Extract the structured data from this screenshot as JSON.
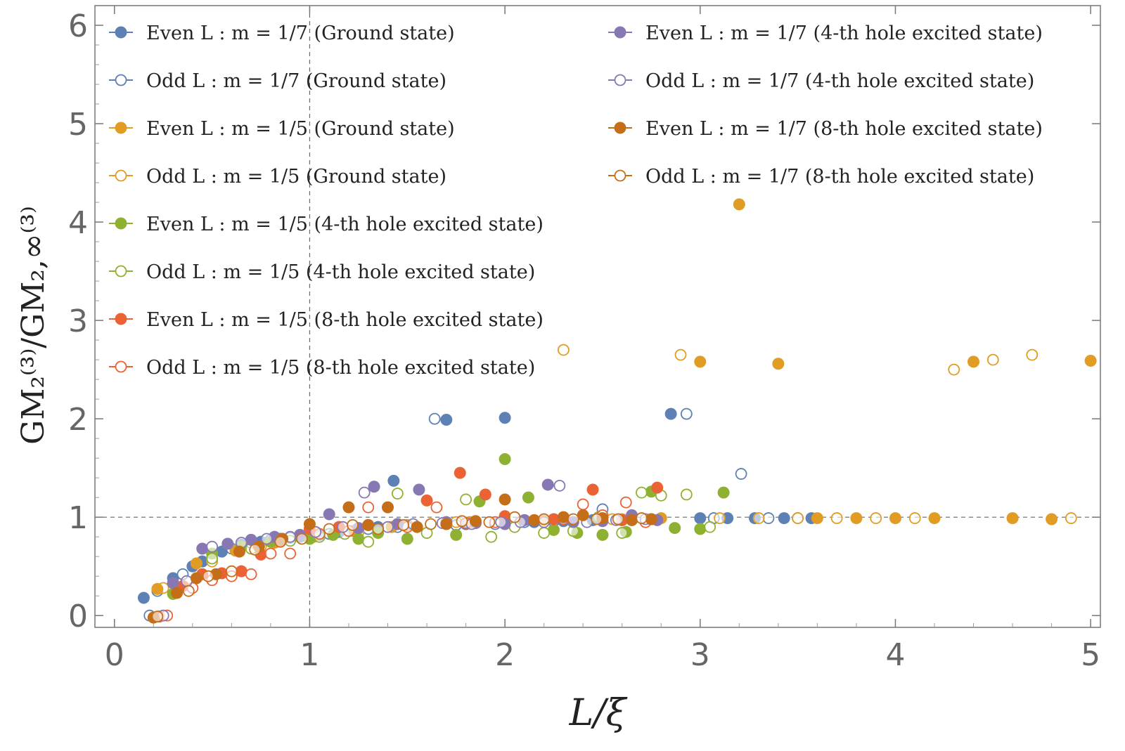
{
  "chart_data": {
    "type": "scatter",
    "xlabel": "L/ξ",
    "ylabel": "GM₂⁽³⁾/GM₂,∞⁽³⁾",
    "xlim": [
      -0.1,
      5.05
    ],
    "ylim": [
      -0.12,
      6.2
    ],
    "xticks": [
      "0",
      "1",
      "2",
      "3",
      "4",
      "5"
    ],
    "yticks": [
      "0",
      "1",
      "2",
      "3",
      "4",
      "5",
      "6"
    ],
    "reference_lines": {
      "x": 1,
      "y": 1
    },
    "legend_position": "top",
    "series": [
      {
        "name": "Even L :  m = 1/7  (Ground state)",
        "color": "#5E81B5",
        "filled": true,
        "points": [
          [
            0.15,
            0.18
          ],
          [
            0.3,
            0.38
          ],
          [
            0.4,
            0.5
          ],
          [
            0.45,
            0.55
          ],
          [
            0.55,
            0.65
          ],
          [
            0.65,
            0.72
          ],
          [
            0.75,
            0.75
          ],
          [
            0.85,
            0.78
          ],
          [
            0.95,
            0.8
          ],
          [
            1.05,
            0.82
          ],
          [
            1.15,
            0.85
          ],
          [
            1.25,
            0.88
          ],
          [
            1.35,
            0.9
          ],
          [
            1.43,
            1.37
          ],
          [
            1.5,
            0.92
          ],
          [
            1.7,
            1.99
          ],
          [
            1.8,
            0.93
          ],
          [
            2.0,
            2.01
          ],
          [
            2.15,
            0.95
          ],
          [
            2.3,
            0.96
          ],
          [
            2.45,
            0.97
          ],
          [
            2.6,
            0.97
          ],
          [
            2.75,
            0.98
          ],
          [
            2.85,
            2.05
          ],
          [
            3.0,
            0.99
          ],
          [
            3.14,
            0.99
          ],
          [
            3.28,
            0.99
          ],
          [
            3.43,
            0.99
          ],
          [
            3.57,
            0.99
          ]
        ]
      },
      {
        "name": "Odd L :  m = 1/7  (Ground state)",
        "color": "#5E81B5",
        "filled": false,
        "points": [
          [
            0.18,
            0.0
          ],
          [
            0.22,
            0.25
          ],
          [
            0.35,
            0.42
          ],
          [
            0.5,
            0.58
          ],
          [
            0.6,
            0.68
          ],
          [
            0.7,
            0.74
          ],
          [
            0.8,
            0.77
          ],
          [
            0.9,
            0.79
          ],
          [
            1.0,
            0.8
          ],
          [
            1.1,
            0.83
          ],
          [
            1.2,
            0.86
          ],
          [
            1.3,
            0.88
          ],
          [
            1.45,
            0.9
          ],
          [
            1.64,
            2.0
          ],
          [
            1.75,
            0.92
          ],
          [
            1.95,
            0.93
          ],
          [
            2.1,
            0.95
          ],
          [
            2.25,
            0.96
          ],
          [
            2.5,
            1.08
          ],
          [
            2.65,
            0.97
          ],
          [
            2.93,
            2.05
          ],
          [
            3.07,
            0.99
          ],
          [
            3.21,
            1.44
          ],
          [
            3.35,
            0.99
          ],
          [
            3.5,
            0.99
          ]
        ]
      },
      {
        "name": "Odd L :  m = 1/5  (Ground state)",
        "color": "#E19C24",
        "filled": false,
        "points": [
          [
            0.25,
            0.28
          ],
          [
            0.5,
            0.55
          ],
          [
            0.75,
            0.7
          ],
          [
            1.0,
            0.78
          ],
          [
            1.25,
            0.85
          ],
          [
            1.5,
            0.92
          ],
          [
            1.75,
            0.95
          ],
          [
            2.0,
            0.96
          ],
          [
            2.3,
            2.7
          ],
          [
            2.55,
            0.98
          ],
          [
            2.9,
            2.65
          ],
          [
            3.1,
            0.99
          ],
          [
            3.3,
            0.99
          ],
          [
            3.5,
            0.99
          ],
          [
            3.7,
            0.99
          ],
          [
            3.9,
            0.99
          ],
          [
            4.1,
            0.99
          ],
          [
            4.3,
            2.5
          ],
          [
            4.5,
            2.6
          ],
          [
            4.7,
            2.65
          ],
          [
            4.9,
            0.99
          ]
        ]
      },
      {
        "name": "Even L :  m = 1/5  (Ground state)",
        "color": "#E19C24",
        "filled": true,
        "points": [
          [
            0.22,
            0.27
          ],
          [
            0.42,
            0.53
          ],
          [
            0.62,
            0.66
          ],
          [
            0.82,
            0.74
          ],
          [
            1.02,
            0.8
          ],
          [
            1.22,
            0.86
          ],
          [
            1.42,
            0.9
          ],
          [
            1.82,
            0.95
          ],
          [
            2.2,
            0.97
          ],
          [
            2.6,
            0.98
          ],
          [
            2.8,
            0.99
          ],
          [
            3.0,
            2.58
          ],
          [
            3.2,
            4.18
          ],
          [
            3.4,
            2.56
          ],
          [
            3.6,
            0.99
          ],
          [
            3.8,
            0.99
          ],
          [
            4.0,
            0.99
          ],
          [
            4.2,
            0.99
          ],
          [
            4.4,
            2.58
          ],
          [
            4.6,
            0.99
          ],
          [
            4.8,
            0.98
          ],
          [
            5.0,
            2.59
          ]
        ]
      },
      {
        "name": "Even L :  m = 1/5  (4-th hole excited state)",
        "color": "#8FB131",
        "filled": true,
        "points": [
          [
            0.3,
            0.22
          ],
          [
            0.5,
            0.63
          ],
          [
            0.65,
            0.7
          ],
          [
            0.8,
            0.75
          ],
          [
            1.0,
            0.78
          ],
          [
            1.12,
            0.82
          ],
          [
            1.25,
            0.78
          ],
          [
            1.35,
            0.84
          ],
          [
            1.5,
            0.78
          ],
          [
            1.75,
            0.82
          ],
          [
            1.87,
            1.16
          ],
          [
            2.0,
            1.59
          ],
          [
            2.12,
            1.2
          ],
          [
            2.25,
            0.87
          ],
          [
            2.37,
            0.84
          ],
          [
            2.5,
            0.82
          ],
          [
            2.62,
            0.85
          ],
          [
            2.75,
            1.26
          ],
          [
            2.87,
            0.89
          ],
          [
            3.0,
            0.88
          ],
          [
            3.12,
            1.25
          ]
        ]
      },
      {
        "name": "Odd L :  m = 1/5  (4-th hole excited state)",
        "color": "#8FB131",
        "filled": false,
        "points": [
          [
            0.2,
            -0.02
          ],
          [
            0.35,
            0.3
          ],
          [
            0.5,
            0.58
          ],
          [
            0.7,
            0.68
          ],
          [
            0.9,
            0.76
          ],
          [
            1.05,
            0.8
          ],
          [
            1.18,
            0.83
          ],
          [
            1.3,
            0.75
          ],
          [
            1.45,
            1.24
          ],
          [
            1.6,
            0.84
          ],
          [
            1.8,
            1.18
          ],
          [
            1.93,
            0.8
          ],
          [
            2.05,
            0.9
          ],
          [
            2.2,
            0.84
          ],
          [
            2.35,
            0.86
          ],
          [
            2.48,
            1.0
          ],
          [
            2.6,
            0.84
          ],
          [
            2.7,
            1.25
          ],
          [
            2.8,
            1.22
          ],
          [
            2.93,
            1.23
          ],
          [
            3.05,
            0.9
          ]
        ]
      },
      {
        "name": "Even L :  m = 1/5  (8-th hole excited state)",
        "color": "#EB6235",
        "filled": true,
        "points": [
          [
            0.23,
            -0.01
          ],
          [
            0.35,
            0.3
          ],
          [
            0.45,
            0.42
          ],
          [
            0.55,
            0.43
          ],
          [
            0.65,
            0.45
          ],
          [
            0.75,
            0.62
          ],
          [
            0.85,
            0.76
          ],
          [
            1.0,
            0.88
          ],
          [
            1.15,
            0.9
          ],
          [
            1.3,
            0.92
          ],
          [
            1.45,
            0.93
          ],
          [
            1.6,
            1.17
          ],
          [
            1.77,
            1.45
          ],
          [
            1.9,
            1.23
          ],
          [
            2.0,
            1.01
          ],
          [
            2.25,
            0.98
          ],
          [
            2.45,
            1.28
          ],
          [
            2.6,
            0.97
          ],
          [
            2.78,
            1.3
          ]
        ]
      },
      {
        "name": "Odd L :  m = 1/5  (8-th hole excited state)",
        "color": "#EB6235",
        "filled": false,
        "points": [
          [
            0.27,
            0.0
          ],
          [
            0.4,
            0.28
          ],
          [
            0.5,
            0.36
          ],
          [
            0.6,
            0.4
          ],
          [
            0.7,
            0.42
          ],
          [
            0.8,
            0.63
          ],
          [
            0.9,
            0.63
          ],
          [
            1.05,
            0.83
          ],
          [
            1.2,
            0.86
          ],
          [
            1.3,
            1.1
          ],
          [
            1.5,
            0.9
          ],
          [
            1.65,
            1.1
          ],
          [
            1.8,
            0.94
          ],
          [
            1.95,
            0.95
          ],
          [
            2.1,
            0.97
          ],
          [
            2.3,
            0.98
          ],
          [
            2.4,
            1.13
          ],
          [
            2.5,
            1.02
          ],
          [
            2.62,
            1.15
          ],
          [
            2.72,
            0.95
          ]
        ]
      },
      {
        "name": "Even L :  m = 1/7  (4-th hole excited state)",
        "color": "#8778B3",
        "filled": true,
        "points": [
          [
            0.3,
            0.33
          ],
          [
            0.45,
            0.68
          ],
          [
            0.58,
            0.73
          ],
          [
            0.7,
            0.77
          ],
          [
            0.82,
            0.8
          ],
          [
            0.95,
            0.82
          ],
          [
            1.1,
            1.03
          ],
          [
            1.25,
            0.89
          ],
          [
            1.33,
            1.31
          ],
          [
            1.45,
            0.93
          ],
          [
            1.56,
            1.28
          ],
          [
            1.7,
            0.95
          ],
          [
            1.85,
            0.94
          ],
          [
            2.0,
            0.93
          ],
          [
            2.1,
            0.97
          ],
          [
            2.22,
            1.33
          ],
          [
            2.35,
            0.95
          ],
          [
            2.5,
            0.96
          ],
          [
            2.65,
            1.02
          ],
          [
            2.78,
            0.97
          ]
        ]
      },
      {
        "name": "Odd L :  m = 1/7  (4-th hole excited state)",
        "color": "#8778B3",
        "filled": false,
        "points": [
          [
            0.25,
            0.0
          ],
          [
            0.37,
            0.35
          ],
          [
            0.5,
            0.7
          ],
          [
            0.65,
            0.74
          ],
          [
            0.78,
            0.78
          ],
          [
            0.9,
            0.8
          ],
          [
            1.03,
            0.85
          ],
          [
            1.17,
            0.9
          ],
          [
            1.28,
            1.25
          ],
          [
            1.4,
            0.9
          ],
          [
            1.53,
            0.93
          ],
          [
            1.68,
            0.94
          ],
          [
            1.83,
            0.93
          ],
          [
            1.98,
            0.95
          ],
          [
            2.08,
            0.95
          ],
          [
            2.2,
            0.95
          ],
          [
            2.28,
            1.32
          ],
          [
            2.42,
            0.95
          ],
          [
            2.57,
            0.97
          ],
          [
            2.72,
            0.98
          ]
        ]
      },
      {
        "name": "Even L :  m = 1/7  (8-th hole excited state)",
        "color": "#C56E1A",
        "filled": true,
        "points": [
          [
            0.2,
            -0.02
          ],
          [
            0.32,
            0.23
          ],
          [
            0.42,
            0.38
          ],
          [
            0.52,
            0.42
          ],
          [
            0.64,
            0.65
          ],
          [
            0.74,
            0.7
          ],
          [
            0.86,
            0.78
          ],
          [
            1.0,
            0.93
          ],
          [
            1.2,
            1.1
          ],
          [
            1.3,
            0.92
          ],
          [
            1.4,
            1.1
          ],
          [
            1.55,
            0.9
          ],
          [
            1.7,
            0.93
          ],
          [
            1.85,
            0.96
          ],
          [
            2.0,
            1.18
          ],
          [
            2.15,
            0.97
          ],
          [
            2.3,
            1.0
          ],
          [
            2.4,
            1.02
          ],
          [
            2.5,
            0.99
          ],
          [
            2.65,
            0.97
          ],
          [
            2.75,
            0.98
          ]
        ]
      },
      {
        "name": "Odd L :  m = 1/7  (8-th hole excited state)",
        "color": "#C56E1A",
        "filled": false,
        "points": [
          [
            0.22,
            -0.01
          ],
          [
            0.38,
            0.25
          ],
          [
            0.48,
            0.4
          ],
          [
            0.6,
            0.45
          ],
          [
            0.72,
            0.67
          ],
          [
            0.85,
            0.75
          ],
          [
            0.96,
            0.78
          ],
          [
            1.1,
            0.88
          ],
          [
            1.22,
            0.92
          ],
          [
            1.35,
            0.88
          ],
          [
            1.48,
            0.92
          ],
          [
            1.62,
            0.93
          ],
          [
            1.78,
            0.96
          ],
          [
            1.92,
            0.95
          ],
          [
            2.05,
            1.0
          ],
          [
            2.2,
            0.98
          ],
          [
            2.35,
            0.98
          ],
          [
            2.47,
            0.98
          ],
          [
            2.58,
            0.98
          ],
          [
            2.7,
            0.99
          ]
        ]
      }
    ],
    "legend_columns": [
      [
        0,
        1,
        3,
        2,
        4,
        5,
        6,
        7
      ],
      [
        8,
        9,
        10,
        11
      ]
    ]
  }
}
